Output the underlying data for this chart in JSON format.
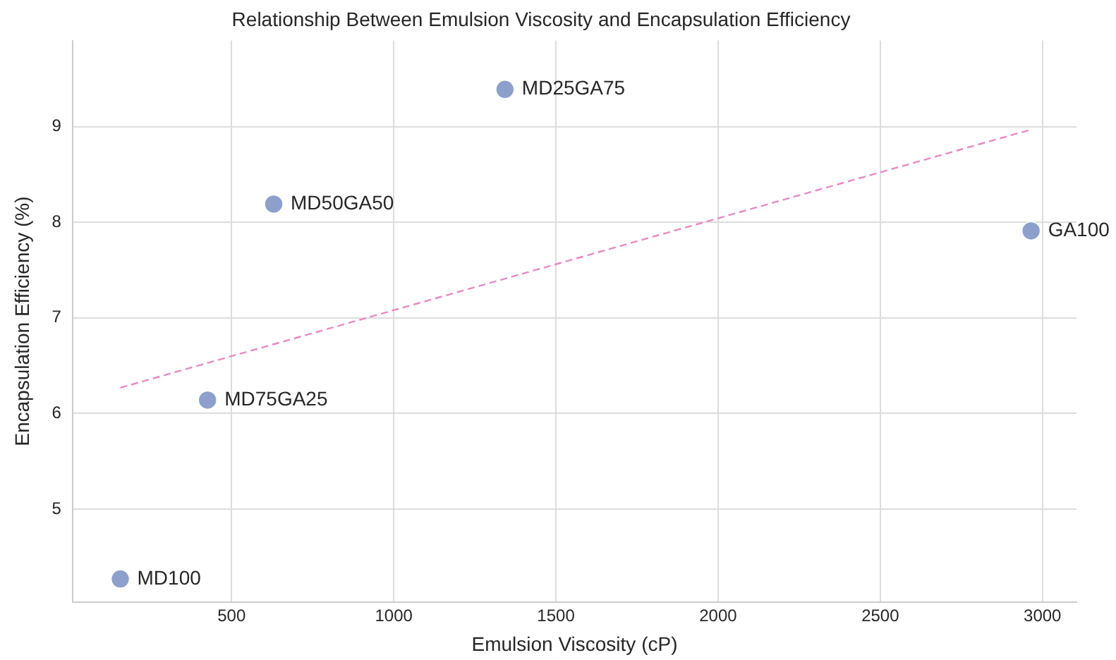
{
  "chart_data": {
    "type": "scatter",
    "title": "Relationship Between Emulsion Viscosity and Encapsulation Efficiency",
    "xlabel": "Emulsion Viscosity (cP)",
    "ylabel": "Encapsulation Efficiency (%)",
    "xlim": [
      10,
      3105
    ],
    "xticks": [
      500,
      1000,
      1500,
      2000,
      2500,
      3000
    ],
    "ylim": [
      4.03,
      9.9
    ],
    "yticks": [
      5,
      6,
      7,
      8,
      9
    ],
    "grid": true,
    "legend": false,
    "marker": "circle",
    "series": [
      {
        "color": "#8da0cb",
        "x": [
          157,
          426,
          630,
          1343,
          2965
        ],
        "values": [
          4.27,
          6.14,
          8.19,
          9.39,
          7.91
        ]
      },
      {
        "type": "line",
        "color": "#e78ac3",
        "line_style": "dashed",
        "marker": "none",
        "x": [
          157,
          2965
        ],
        "values": [
          6.27,
          8.97
        ]
      }
    ],
    "annotations": [
      {
        "text": "MD100",
        "x": 157,
        "y": 4.27
      },
      {
        "text": "MD75GA25",
        "x": 426,
        "y": 6.14
      },
      {
        "text": "MD50GA50",
        "x": 630,
        "y": 8.19
      },
      {
        "text": "MD25GA75",
        "x": 1343,
        "y": 9.39
      },
      {
        "text": "GA100",
        "x": 2965,
        "y": 7.91
      }
    ]
  }
}
